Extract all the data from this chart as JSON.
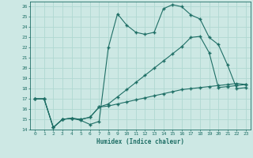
{
  "xlabel": "Humidex (Indice chaleur)",
  "bg_color": "#cde8e4",
  "line_color": "#1e6e65",
  "grid_color": "#b0d8d2",
  "xlim": [
    -0.5,
    23.5
  ],
  "ylim": [
    14,
    26.5
  ],
  "xticks": [
    0,
    1,
    2,
    3,
    4,
    5,
    6,
    7,
    8,
    9,
    10,
    11,
    12,
    13,
    14,
    15,
    16,
    17,
    18,
    19,
    20,
    21,
    22,
    23
  ],
  "yticks": [
    14,
    15,
    16,
    17,
    18,
    19,
    20,
    21,
    22,
    23,
    24,
    25,
    26
  ],
  "line1_x": [
    0,
    1,
    2,
    3,
    4,
    5,
    6,
    7,
    8,
    9,
    10,
    11,
    12,
    13,
    14,
    15,
    16,
    17,
    18,
    19,
    20,
    21,
    22,
    23
  ],
  "line1_y": [
    17,
    17,
    14.2,
    15.0,
    15.1,
    14.9,
    14.5,
    14.8,
    22.0,
    25.3,
    24.2,
    23.5,
    23.3,
    23.5,
    25.8,
    26.2,
    26.0,
    25.2,
    24.8,
    23.0,
    22.3,
    20.3,
    18.0,
    18.1
  ],
  "line2_x": [
    0,
    1,
    2,
    3,
    4,
    5,
    6,
    7,
    8,
    9,
    10,
    11,
    12,
    13,
    14,
    15,
    16,
    17,
    18,
    19,
    20,
    21,
    22,
    23
  ],
  "line2_y": [
    17.0,
    17.0,
    14.2,
    15.0,
    15.1,
    15.0,
    15.2,
    16.2,
    16.3,
    16.5,
    16.7,
    16.9,
    17.1,
    17.3,
    17.5,
    17.7,
    17.9,
    18.0,
    18.1,
    18.2,
    18.3,
    18.4,
    18.5,
    18.4
  ],
  "line3_x": [
    0,
    1,
    2,
    3,
    4,
    5,
    6,
    7,
    8,
    9,
    10,
    11,
    12,
    13,
    14,
    15,
    16,
    17,
    18,
    19,
    20,
    21,
    22,
    23
  ],
  "line3_y": [
    17.0,
    17.0,
    14.2,
    15.0,
    15.1,
    15.0,
    15.2,
    16.2,
    16.5,
    17.2,
    17.9,
    18.6,
    19.3,
    20.0,
    20.7,
    21.4,
    22.1,
    23.0,
    23.1,
    21.5,
    18.1,
    18.2,
    18.3,
    18.4
  ]
}
